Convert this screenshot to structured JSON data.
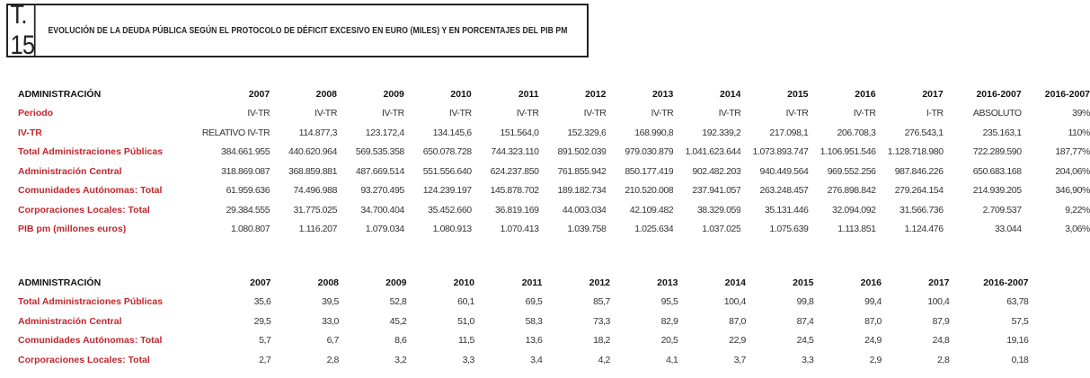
{
  "title": {
    "code": "T. 15",
    "text": "EVOLUCIÓN DE LA DEUDA PÚBLICA SEGÚN EL PROTOCOLO DE DÉFICIT EXCESIVO EN EURO (MILES) Y EN PORCENTAJES DEL PIB PM"
  },
  "table1": {
    "headers": [
      "ADMINISTRACIÓN",
      "2007",
      "2008",
      "2009",
      "2010",
      "2011",
      "2012",
      "2013",
      "2014",
      "2015",
      "2016",
      "2017",
      "2016-2007",
      "2016-2007"
    ],
    "rows": [
      {
        "label": "Periodo",
        "cells": [
          "IV-TR",
          "IV-TR",
          "IV-TR",
          "IV-TR",
          "IV-TR",
          "IV-TR",
          "IV-TR",
          "IV-TR",
          "IV-TR",
          "IV-TR",
          "I-TR",
          "ABSOLUTO",
          "39%"
        ]
      },
      {
        "label": "IV-TR",
        "cells": [
          "RELATIVO IV-TR",
          "114.877,3",
          "123.172,4",
          "134.145,6",
          "151.564,0",
          "152.329,6",
          "168.990,8",
          "192.339,2",
          "217.098,1",
          "206.708,3",
          "276.543,1",
          "235.163,1",
          "110%"
        ]
      },
      {
        "label": "Total Administraciones Públicas",
        "cells": [
          "384.661.955",
          "440.620.964",
          "569.535.358",
          "650.078.728",
          "744.323.110",
          "891.502.039",
          "979.030.879",
          "1.041.623.644",
          "1.073.893.747",
          "1.106.951.546",
          "1.128.718.980",
          "722.289.590",
          "187,77%"
        ]
      },
      {
        "label": "Administración Central",
        "cells": [
          "318.869.087",
          "368.859.881",
          "487.669.514",
          "551.556.640",
          "624.237.850",
          "761.855.942",
          "850.177.419",
          "902.482.203",
          "940.449.564",
          "969.552.256",
          "987.846.226",
          "650.683.168",
          "204,06%"
        ]
      },
      {
        "label": "Comunidades Autónomas: Total",
        "cells": [
          "61.959.636",
          "74.496.988",
          "93.270.495",
          "124.239.197",
          "145.878.702",
          "189.182.734",
          "210.520.008",
          "237.941.057",
          "263.248.457",
          "276.898.842",
          "279.264.154",
          "214.939.205",
          "346,90%"
        ]
      },
      {
        "label": "Corporaciones Locales: Total",
        "cells": [
          "29.384.555",
          "31.775.025",
          "34.700.404",
          "35.452.660",
          "36.819.169",
          "44.003.034",
          "42.109.482",
          "38.329.059",
          "35.131.446",
          "32.094.092",
          "31.566.736",
          "2.709.537",
          "9,22%"
        ]
      },
      {
        "label": "PIB pm (millones euros)",
        "cells": [
          "1.080.807",
          "1.116.207",
          "1.079.034",
          "1.080.913",
          "1.070.413",
          "1.039.758",
          "1.025.634",
          "1.037.025",
          "1.075.639",
          "1.113.851",
          "1.124.476",
          "33.044",
          "3,06%"
        ]
      }
    ]
  },
  "table2": {
    "headers": [
      "ADMINISTRACIÓN",
      "2007",
      "2008",
      "2009",
      "2010",
      "2011",
      "2012",
      "2013",
      "2014",
      "2015",
      "2016",
      "2017",
      "2016-2007"
    ],
    "rows": [
      {
        "label": "Total Administraciones Públicas",
        "cells": [
          "35,6",
          "39,5",
          "52,8",
          "60,1",
          "69,5",
          "85,7",
          "95,5",
          "100,4",
          "99,8",
          "99,4",
          "100,4",
          "63,78"
        ]
      },
      {
        "label": "Administración Central",
        "cells": [
          "29,5",
          "33,0",
          "45,2",
          "51,0",
          "58,3",
          "73,3",
          "82,9",
          "87,0",
          "87,4",
          "87,0",
          "87,9",
          "57,5"
        ]
      },
      {
        "label": "Comunidades Autónomas: Total",
        "cells": [
          "5,7",
          "6,7",
          "8,6",
          "11,5",
          "13,6",
          "18,2",
          "20,5",
          "22,9",
          "24,5",
          "24,9",
          "24,8",
          "19,16"
        ]
      },
      {
        "label": "Corporaciones Locales: Total",
        "cells": [
          "2,7",
          "2,8",
          "3,2",
          "3,3",
          "3,4",
          "4,2",
          "4,1",
          "3,7",
          "3,3",
          "2,9",
          "2,8",
          "0,18"
        ]
      }
    ]
  }
}
